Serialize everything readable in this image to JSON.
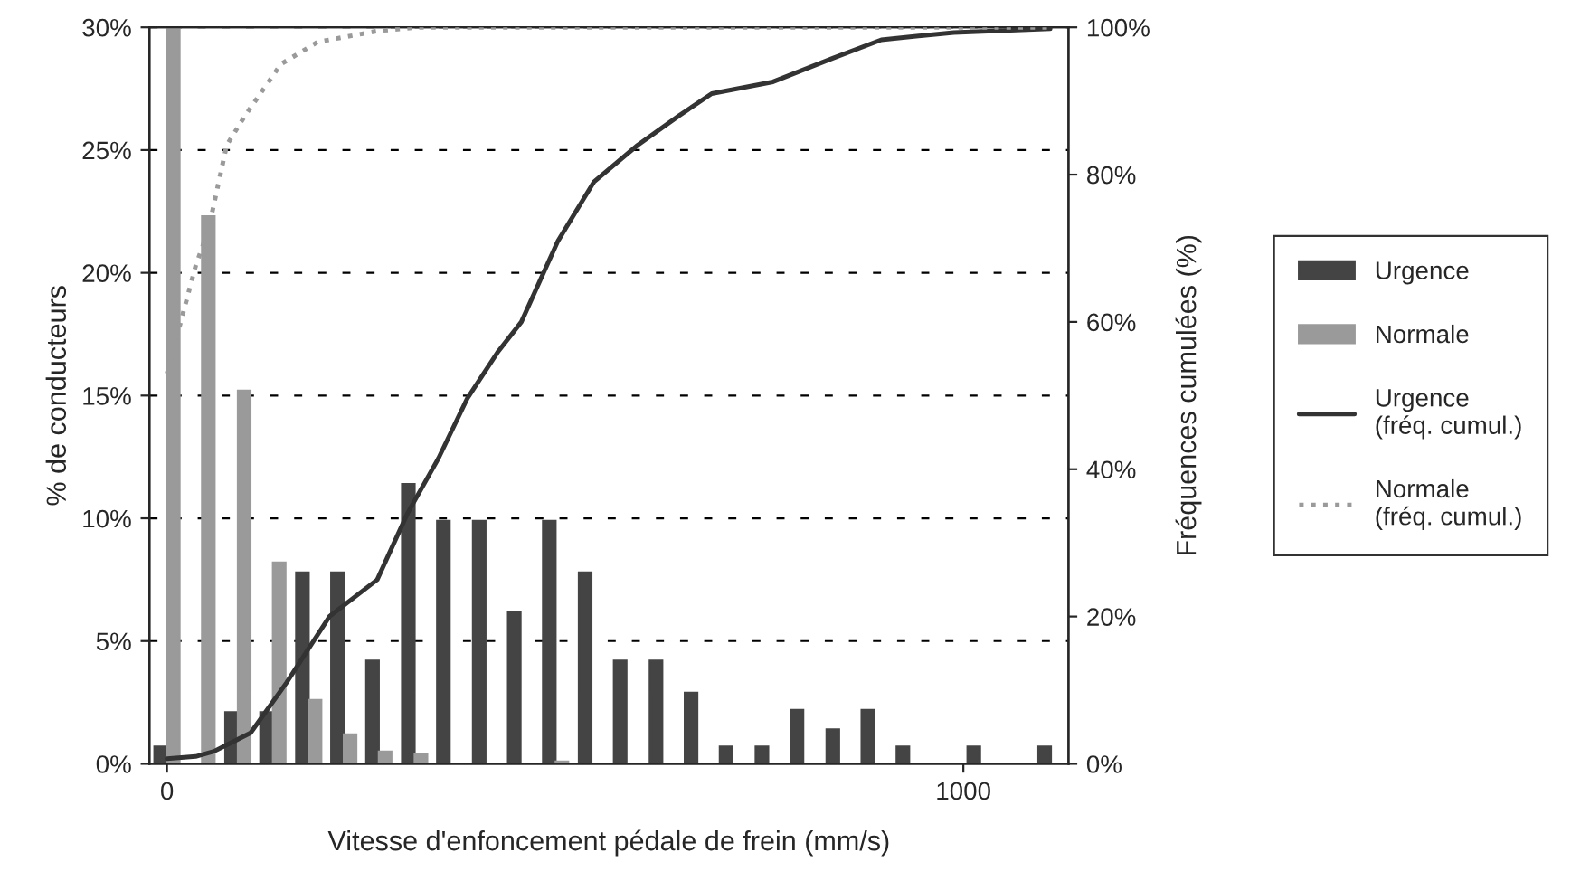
{
  "chart_data": {
    "type": "bar",
    "xlabel": "Vitesse d'enfoncement pédale de frein (mm/s)",
    "ylabel": "% de conducteurs",
    "y2label": "Fréquences cumulées (%)",
    "x": [
      0,
      44,
      89,
      133,
      178,
      222,
      266,
      311,
      355,
      400,
      444,
      488,
      533,
      577,
      622,
      666,
      710,
      755,
      799,
      844,
      888,
      932,
      977,
      1021,
      1066,
      1110
    ],
    "xlim": [
      -22,
      1132
    ],
    "xticks": [
      0,
      1000
    ],
    "ylim": [
      0,
      30
    ],
    "yticks": [
      {
        "value": 0,
        "label": "0%"
      },
      {
        "value": 5,
        "label": "5%"
      },
      {
        "value": 10,
        "label": "10%"
      },
      {
        "value": 15,
        "label": "15%"
      },
      {
        "value": 20,
        "label": "20%"
      },
      {
        "value": 25,
        "label": "25%"
      },
      {
        "value": 30,
        "label": "30%"
      }
    ],
    "y2lim": [
      0,
      100
    ],
    "y2ticks": [
      {
        "value": 0,
        "label": "0%"
      },
      {
        "value": 20,
        "label": "20%"
      },
      {
        "value": 40,
        "label": "40%"
      },
      {
        "value": 60,
        "label": "60%"
      },
      {
        "value": 80,
        "label": "80%"
      },
      {
        "value": 100,
        "label": "100%"
      }
    ],
    "grid": "y",
    "legend": "right",
    "marker": "none",
    "series": [
      {
        "name": "Urgence",
        "color": "#444444",
        "values": [
          0.7,
          null,
          2.1,
          2.1,
          7.8,
          7.8,
          4.2,
          11.4,
          9.9,
          9.9,
          6.2,
          9.9,
          7.8,
          4.2,
          4.2,
          2.9,
          0.7,
          0.7,
          2.2,
          1.4,
          2.2,
          0.7,
          null,
          0.7,
          null,
          0.7
        ]
      },
      {
        "name": "Normale",
        "color": "#9a9a9a",
        "values": [
          30,
          22.3,
          15.2,
          8.2,
          2.6,
          1.2,
          0.5,
          0.4,
          null,
          null,
          null,
          0.1,
          null,
          null,
          null,
          null,
          null,
          null,
          null,
          null,
          null,
          null,
          null,
          null,
          null,
          null
        ]
      },
      {
        "name": "Urgence\n(fréq. cumul.)",
        "type": "line",
        "axis": "y2",
        "color": "#333333",
        "line_style": "solid",
        "x": [
          0,
          36,
          59,
          105,
          150,
          204,
          264,
          302,
          341,
          377,
          416,
          445,
          491,
          536,
          591,
          643,
          684,
          761,
          836,
          897,
          988,
          1109
        ],
        "values": [
          0.7,
          1,
          1.7,
          4.2,
          11,
          20,
          25,
          34,
          41.5,
          49.6,
          56,
          60,
          71,
          79,
          84,
          88,
          91,
          92.6,
          95.8,
          98.3,
          99.3,
          99.8
        ]
      },
      {
        "name": "Normale\n(fréq. cumul.)",
        "type": "line",
        "axis": "y2",
        "color": "#9a9a9a",
        "line_style": "dotted",
        "x": [
          0,
          36,
          52,
          75,
          98,
          143,
          189,
          264,
          314,
          1109
        ],
        "values": [
          53,
          67.6,
          72.5,
          84,
          88,
          95,
          98,
          99.5,
          100,
          100
        ]
      }
    ]
  }
}
